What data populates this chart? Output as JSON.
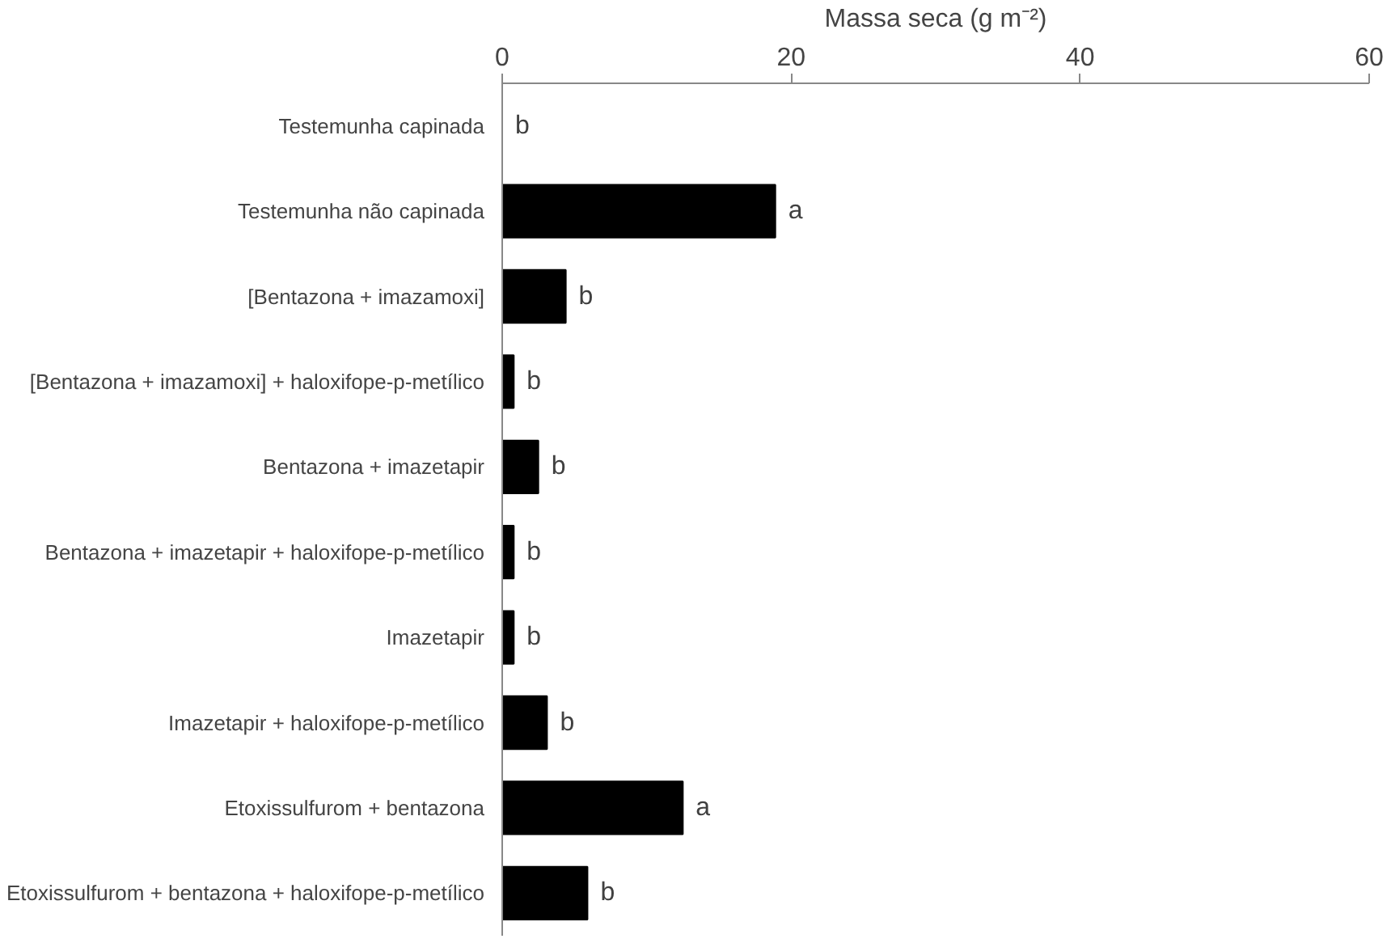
{
  "chart_data": {
    "type": "bar",
    "orientation": "horizontal",
    "xlabel": "Massa seca (g m⁻²)",
    "categories": [
      "Testemunha capinada",
      "Testemunha não capinada",
      "[Bentazona + imazamoxi]",
      "[Bentazona + imazamoxi] + haloxifope-p-metílico",
      "Bentazona + imazetapir",
      "Bentazona + imazetapir + haloxifope-p-metílico",
      "Imazetapir",
      "Imazetapir + haloxifope-p-metílico",
      "Etoxissulfurom + bentazona",
      "Etoxissulfurom + bentazona + haloxifope-p-metílico"
    ],
    "values": [
      0,
      18.9,
      4.4,
      0.8,
      2.5,
      0.8,
      0.8,
      3.1,
      12.5,
      5.9
    ],
    "value_labels": [
      "b",
      "a",
      "b",
      "b",
      "b",
      "b",
      "b",
      "b",
      "a",
      "b"
    ],
    "color": "#000000",
    "xlim": [
      0,
      60
    ],
    "xticks": [
      0,
      20,
      40,
      60
    ],
    "grid": false
  }
}
